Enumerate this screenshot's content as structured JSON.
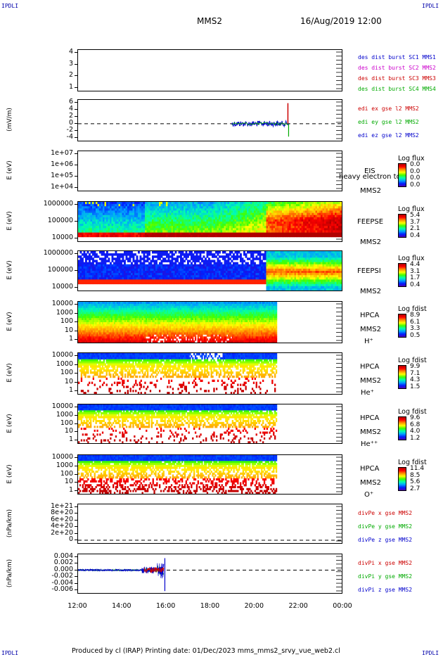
{
  "header": {
    "corner_label": "IPDLI",
    "spacecraft": "MMS2",
    "datetime": "16/Aug/2019 12:00"
  },
  "footer": {
    "text": "Produced by cl (IRAP)    Printing date: 01/Dec/2023    mms_mms2_srvy_vue_web2.cl"
  },
  "x_axis": {
    "ticks": [
      "12:00",
      "14:00",
      "16:00",
      "18:00",
      "20:00",
      "22:00",
      "00:00"
    ]
  },
  "chart_data": [
    {
      "type": "line",
      "ylabel": "",
      "yticks": [
        "4",
        "3",
        "2",
        "1"
      ],
      "legend": [
        {
          "text": "des dist burst SC1 MMS1",
          "color": "#0000cc"
        },
        {
          "text": "des dist burst SC2 MMS2",
          "color": "#cc00cc"
        },
        {
          "text": "des dist burst SC3 MMS3",
          "color": "#cc0000"
        },
        {
          "text": "des dist burst SC4 MMS4",
          "color": "#00aa00"
        }
      ],
      "series": []
    },
    {
      "type": "line",
      "ylabel": "(mV/m)",
      "yticks": [
        "6",
        "4",
        "2",
        "0",
        "-2",
        "-4"
      ],
      "ylim": [
        -5,
        7
      ],
      "x_range_hours": [
        12,
        24
      ],
      "legend": [
        {
          "text": "edi ex gse l2 MMS2",
          "color": "#cc0000"
        },
        {
          "text": "edi ey gse l2 MMS2",
          "color": "#00aa00"
        },
        {
          "text": "edi ez gse l2 MMS2",
          "color": "#0000cc"
        }
      ],
      "active_interval_hours": [
        19.0,
        21.6
      ]
    },
    {
      "type": "heatmap",
      "ylabel": "E (eV)",
      "yticks": [
        "1e+07",
        "1e+06",
        "1e+05",
        "1e+04"
      ],
      "instrument": [
        "EIS",
        "MMS2"
      ],
      "overlay_text": "heavy electron to",
      "colorbar": {
        "label": "Log flux",
        "values": [
          "0.0",
          "0.0",
          "0.0",
          "0.0"
        ]
      }
    },
    {
      "type": "heatmap",
      "ylabel": "E (eV)",
      "yticks": [
        "1000000",
        "100000",
        "10000"
      ],
      "instrument": [
        "FEEPSE",
        "MMS2"
      ],
      "colorbar": {
        "label": "Log flux",
        "values": [
          "5.4",
          "3.7",
          "2.1",
          "0.4"
        ]
      }
    },
    {
      "type": "heatmap",
      "ylabel": "E (eV)",
      "yticks": [
        "1000000",
        "100000",
        "10000"
      ],
      "instrument": [
        "FEEPSI",
        "MMS2"
      ],
      "colorbar": {
        "label": "Log flux",
        "values": [
          "4.4",
          "3.1",
          "1.7",
          "0.4"
        ]
      }
    },
    {
      "type": "heatmap",
      "ylabel": "E (eV)",
      "yticks": [
        "10000",
        "1000",
        "100",
        "10",
        "1"
      ],
      "instrument": [
        "HPCA",
        "MMS2"
      ],
      "species": "H⁺",
      "colorbar": {
        "label": "Log fdist",
        "values": [
          "8.9",
          "6.1",
          "3.3",
          "0.5"
        ]
      }
    },
    {
      "type": "heatmap",
      "ylabel": "E (eV)",
      "yticks": [
        "10000",
        "1000",
        "100",
        "10",
        "1"
      ],
      "instrument": [
        "HPCA",
        "MMS2"
      ],
      "species": "He⁺",
      "colorbar": {
        "label": "Log fdist",
        "values": [
          "9.9",
          "7.1",
          "4.3",
          "1.5"
        ]
      }
    },
    {
      "type": "heatmap",
      "ylabel": "E (eV)",
      "yticks": [
        "10000",
        "1000",
        "100",
        "10",
        "1"
      ],
      "instrument": [
        "HPCA",
        "MMS2"
      ],
      "species": "He⁺⁺",
      "colorbar": {
        "label": "Log fdist",
        "values": [
          "9.6",
          "6.8",
          "4.0",
          "1.2"
        ]
      }
    },
    {
      "type": "heatmap",
      "ylabel": "E (eV)",
      "yticks": [
        "10000",
        "1000",
        "100",
        "10",
        "1"
      ],
      "instrument": [
        "HPCA",
        "MMS2"
      ],
      "species": "O⁺",
      "colorbar": {
        "label": "Log fdist",
        "values": [
          "11.4",
          "8.5",
          "5.6",
          "2.7"
        ]
      }
    },
    {
      "type": "line",
      "ylabel": "(nPa/km)",
      "yticks": [
        "1e+21",
        "8e+20",
        "6e+20",
        "4e+20",
        "2e+20",
        "0"
      ],
      "legend": [
        {
          "text": "divPe x gse MMS2",
          "color": "#cc0000"
        },
        {
          "text": "divPe y gse MMS2",
          "color": "#00aa00"
        },
        {
          "text": "divPe z gse MMS2",
          "color": "#0000cc"
        }
      ]
    },
    {
      "type": "line",
      "ylabel": "(nPa/km)",
      "yticks": [
        "0.004",
        "0.002",
        "0.000",
        "-0.002",
        "-0.004",
        "-0.006"
      ],
      "ylim": [
        -0.0065,
        0.0045
      ],
      "legend": [
        {
          "text": "divPi x gse MMS2",
          "color": "#cc0000"
        },
        {
          "text": "divPi y gse MMS2",
          "color": "#00aa00"
        },
        {
          "text": "divPi z gse MMS2",
          "color": "#0000cc"
        }
      ],
      "active_interval_hours": [
        12.0,
        16.0
      ]
    }
  ]
}
